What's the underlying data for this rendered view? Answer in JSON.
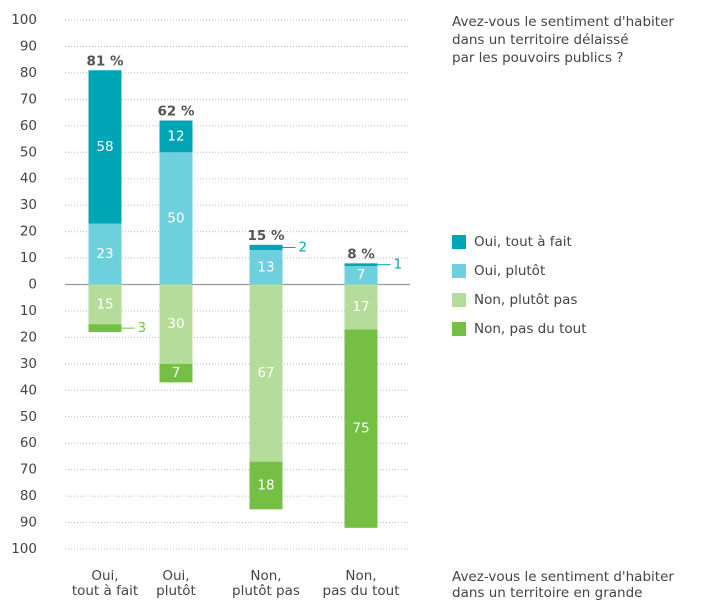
{
  "chart_data": {
    "type": "diverging_stacked_bar",
    "question_lines": [
      "Avez-vous le sentiment d'habiter",
      "dans un territoire délaissé",
      "par les pouvoirs publics ?"
    ],
    "footer_lines": [
      "Avez-vous le sentiment d'habiter",
      "dans un territoire en grande"
    ],
    "categories": [
      [
        "Oui,",
        "tout à fait"
      ],
      [
        "Oui,",
        "plutôt"
      ],
      [
        "Non,",
        "plutôt pas"
      ],
      [
        "Non,",
        "pas du tout"
      ]
    ],
    "series": [
      {
        "name": "Oui, tout à fait",
        "color": "#00a5b5",
        "values": [
          58,
          12,
          2,
          1
        ]
      },
      {
        "name": "Oui, plutôt",
        "color": "#6fd0dd",
        "values": [
          23,
          50,
          13,
          7
        ]
      },
      {
        "name": "Non, plutôt pas",
        "color": "#b6dc9b",
        "values": [
          -15,
          -30,
          -67,
          -17
        ],
        "value_labels": [
          "15",
          "30",
          "67",
          "17"
        ]
      },
      {
        "name": "Non, pas du tout",
        "color": "#74bf44",
        "values": [
          -3,
          -7,
          -18,
          -75
        ],
        "value_labels": [
          "3",
          "7",
          "18",
          "75"
        ]
      }
    ],
    "totals": [
      81,
      62,
      15,
      8
    ],
    "total_labels": [
      "81 %",
      "62 %",
      "15 %",
      "8 %"
    ],
    "ylim": [
      -100,
      100
    ],
    "yticks": [
      {
        "value": -100,
        "label": "100"
      },
      {
        "value": -90,
        "label": "90"
      },
      {
        "value": -80,
        "label": "80"
      },
      {
        "value": -70,
        "label": "70"
      },
      {
        "value": -60,
        "label": "60"
      },
      {
        "value": -50,
        "label": "50"
      },
      {
        "value": -40,
        "label": "40"
      },
      {
        "value": -30,
        "label": "30"
      },
      {
        "value": -20,
        "label": "20"
      },
      {
        "value": -10,
        "label": "10"
      },
      0,
      10,
      20,
      30,
      40,
      50,
      60,
      70,
      80,
      90,
      100
    ],
    "grid": true
  }
}
